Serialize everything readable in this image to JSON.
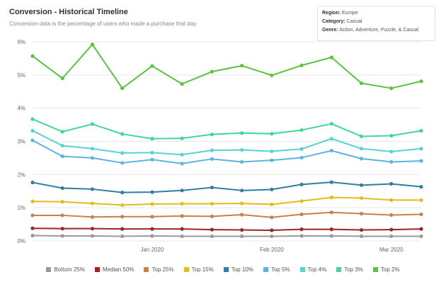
{
  "title": "Conversion - Historical Timeline",
  "subtitle": "Conversion data is the percentage of users who made a purchase that day.",
  "info": {
    "region_label": "Region:",
    "region": "Europe",
    "category_label": "Category:",
    "category": "Casual",
    "genre_label": "Genre:",
    "genre": "Action, Adventure, Puzzle, & Casual"
  },
  "chart_data": {
    "type": "line",
    "ylim": [
      0,
      6
    ],
    "yticks": [
      0,
      1,
      2,
      3,
      4,
      5,
      6
    ],
    "ytick_labels": [
      "0%",
      "1%",
      "2%",
      "3%",
      "4%",
      "5%",
      "6%"
    ],
    "x": [
      0,
      1,
      2,
      3,
      4,
      5,
      6,
      7,
      8,
      9,
      10,
      11,
      12,
      13
    ],
    "xlim": [
      0,
      13
    ],
    "xticks": [
      4,
      8,
      12
    ],
    "xtick_labels": [
      "Jan 2020",
      "Feb 2020",
      "Mar 2020"
    ],
    "series": [
      {
        "name": "Bottom 25%",
        "color": "#9a9a9a",
        "values": [
          0.16,
          0.15,
          0.15,
          0.14,
          0.15,
          0.14,
          0.14,
          0.14,
          0.14,
          0.15,
          0.15,
          0.14,
          0.14,
          0.14
        ]
      },
      {
        "name": "Median 50%",
        "color": "#a02424",
        "values": [
          0.38,
          0.37,
          0.37,
          0.36,
          0.36,
          0.36,
          0.34,
          0.33,
          0.32,
          0.35,
          0.35,
          0.33,
          0.34,
          0.36
        ]
      },
      {
        "name": "Top 25%",
        "color": "#c98146",
        "values": [
          0.77,
          0.77,
          0.72,
          0.73,
          0.73,
          0.75,
          0.74,
          0.79,
          0.71,
          0.8,
          0.86,
          0.82,
          0.78,
          0.8
        ]
      },
      {
        "name": "Top 15%",
        "color": "#e2bd1f",
        "values": [
          1.19,
          1.18,
          1.13,
          1.08,
          1.11,
          1.12,
          1.12,
          1.13,
          1.1,
          1.2,
          1.31,
          1.29,
          1.23,
          1.23
        ]
      },
      {
        "name": "Top 10%",
        "color": "#2f7fa3",
        "values": [
          1.76,
          1.59,
          1.56,
          1.46,
          1.47,
          1.52,
          1.61,
          1.52,
          1.55,
          1.7,
          1.77,
          1.68,
          1.72,
          1.63
        ]
      },
      {
        "name": "Top 5%",
        "color": "#5fb3de",
        "values": [
          3.03,
          2.55,
          2.5,
          2.35,
          2.45,
          2.33,
          2.47,
          2.38,
          2.43,
          2.51,
          2.72,
          2.48,
          2.38,
          2.41
        ]
      },
      {
        "name": "Top 4%",
        "color": "#58d4d0",
        "values": [
          3.32,
          2.87,
          2.78,
          2.65,
          2.66,
          2.6,
          2.73,
          2.74,
          2.7,
          2.77,
          3.08,
          2.78,
          2.69,
          2.78
        ]
      },
      {
        "name": "Top 3%",
        "color": "#3fd992",
        "values": [
          3.67,
          3.29,
          3.52,
          3.22,
          3.08,
          3.09,
          3.21,
          3.25,
          3.23,
          3.34,
          3.53,
          3.15,
          3.17,
          3.32
        ]
      },
      {
        "name": "Top 2%",
        "color": "#5ac43c",
        "values": [
          5.57,
          4.9,
          5.92,
          4.6,
          5.27,
          4.73,
          5.1,
          5.28,
          4.99,
          5.29,
          5.53,
          4.75,
          4.6,
          4.81
        ]
      }
    ]
  }
}
